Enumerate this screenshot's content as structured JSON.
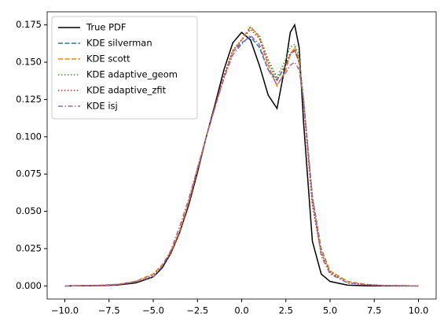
{
  "chart_data": {
    "type": "line",
    "x": [
      -10,
      -8,
      -7,
      -6,
      -5,
      -4.5,
      -4,
      -3.5,
      -3,
      -2.5,
      -2,
      -1.5,
      -1,
      -0.5,
      0,
      0.5,
      1,
      1.5,
      2,
      2.5,
      2.75,
      3,
      3.25,
      3.5,
      4,
      4.5,
      5,
      6,
      7,
      8,
      10
    ],
    "series": [
      {
        "name": "True PDF",
        "color": "#000000",
        "linestyle": "solid",
        "values": [
          0,
          0.0002,
          0.0006,
          0.002,
          0.006,
          0.012,
          0.022,
          0.036,
          0.054,
          0.076,
          0.1,
          0.122,
          0.145,
          0.163,
          0.17,
          0.165,
          0.148,
          0.128,
          0.119,
          0.15,
          0.17,
          0.175,
          0.16,
          0.11,
          0.03,
          0.008,
          0.003,
          0.0005,
          0.0001,
          0,
          0
        ]
      },
      {
        "name": "KDE silverman",
        "color": "#1f77b4",
        "linestyle": "dashed",
        "values": [
          0,
          0.0004,
          0.001,
          0.003,
          0.008,
          0.014,
          0.023,
          0.037,
          0.056,
          0.078,
          0.1,
          0.12,
          0.14,
          0.157,
          0.163,
          0.167,
          0.16,
          0.145,
          0.138,
          0.148,
          0.155,
          0.158,
          0.15,
          0.125,
          0.06,
          0.025,
          0.01,
          0.003,
          0.001,
          0.0003,
          0
        ]
      },
      {
        "name": "KDE scott",
        "color": "#ff7f0e",
        "linestyle": "dashed",
        "values": [
          0,
          0.0004,
          0.001,
          0.003,
          0.008,
          0.014,
          0.023,
          0.037,
          0.056,
          0.078,
          0.1,
          0.12,
          0.14,
          0.157,
          0.165,
          0.174,
          0.167,
          0.148,
          0.134,
          0.145,
          0.155,
          0.16,
          0.152,
          0.125,
          0.058,
          0.024,
          0.01,
          0.003,
          0.001,
          0.0003,
          0
        ]
      },
      {
        "name": "KDE adaptive_geom",
        "color": "#2ca02c",
        "linestyle": "dotted",
        "values": [
          0,
          0.0003,
          0.0008,
          0.0025,
          0.007,
          0.013,
          0.022,
          0.036,
          0.055,
          0.077,
          0.1,
          0.121,
          0.141,
          0.158,
          0.165,
          0.173,
          0.168,
          0.152,
          0.14,
          0.152,
          0.16,
          0.162,
          0.154,
          0.125,
          0.055,
          0.022,
          0.009,
          0.002,
          0.0008,
          0.0002,
          0
        ]
      },
      {
        "name": "KDE adaptive_zfit",
        "color": "#d62728",
        "linestyle": "dotted",
        "values": [
          0,
          0.0003,
          0.0008,
          0.0025,
          0.007,
          0.013,
          0.022,
          0.036,
          0.055,
          0.077,
          0.1,
          0.121,
          0.141,
          0.158,
          0.165,
          0.172,
          0.166,
          0.15,
          0.138,
          0.149,
          0.156,
          0.158,
          0.15,
          0.122,
          0.054,
          0.022,
          0.009,
          0.002,
          0.0008,
          0.0002,
          0
        ]
      },
      {
        "name": "KDE isj",
        "color": "#9467bd",
        "linestyle": "dashdot",
        "values": [
          0,
          0.0004,
          0.001,
          0.003,
          0.006,
          0.013,
          0.024,
          0.04,
          0.058,
          0.079,
          0.1,
          0.12,
          0.139,
          0.155,
          0.162,
          0.168,
          0.162,
          0.145,
          0.135,
          0.143,
          0.148,
          0.15,
          0.145,
          0.125,
          0.06,
          0.02,
          0.008,
          0.002,
          0.0008,
          0.0002,
          0
        ]
      }
    ],
    "xlim": [
      -11,
      11
    ],
    "xticks": [
      {
        "value": -10,
        "label": "−10.0"
      },
      {
        "value": -7.5,
        "label": "−7.5"
      },
      {
        "value": -5,
        "label": "−5.0"
      },
      {
        "value": -2.5,
        "label": "−2.5"
      },
      {
        "value": 0,
        "label": "0.0"
      },
      {
        "value": 2.5,
        "label": "2.5"
      },
      {
        "value": 5,
        "label": "5.0"
      },
      {
        "value": 7.5,
        "label": "7.5"
      },
      {
        "value": 10,
        "label": "10.0"
      }
    ],
    "ylim": [
      -0.0088,
      0.1838
    ],
    "yticks": [
      {
        "value": 0,
        "label": "0.000"
      },
      {
        "value": 0.025,
        "label": "0.025"
      },
      {
        "value": 0.05,
        "label": "0.050"
      },
      {
        "value": 0.075,
        "label": "0.075"
      },
      {
        "value": 0.1,
        "label": "0.100"
      },
      {
        "value": 0.125,
        "label": "0.125"
      },
      {
        "value": 0.15,
        "label": "0.150"
      },
      {
        "value": 0.175,
        "label": "0.175"
      }
    ],
    "grid": false,
    "legend": "upper-left"
  }
}
